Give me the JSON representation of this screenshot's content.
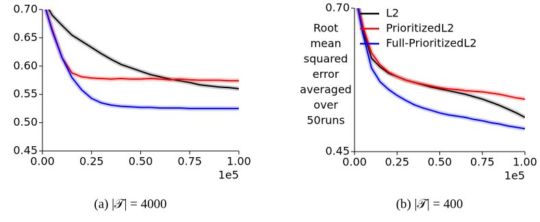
{
  "chart_data": [
    {
      "type": "line",
      "caption": "(a) |𝒯| = 4000",
      "x_offset_label": "1e5",
      "x": [
        0,
        5000,
        10000,
        15000,
        20000,
        25000,
        30000,
        35000,
        40000,
        45000,
        50000,
        55000,
        60000,
        65000,
        70000,
        75000,
        80000,
        85000,
        90000,
        95000,
        100000
      ],
      "xlim": [
        0,
        100000
      ],
      "xticks": [
        {
          "value": 0,
          "label": "0.00"
        },
        {
          "value": 25000,
          "label": "0.25"
        },
        {
          "value": 50000,
          "label": "0.50"
        },
        {
          "value": 75000,
          "label": "0.75"
        },
        {
          "value": 100000,
          "label": "1.00"
        }
      ],
      "ylim": [
        0.45,
        0.7
      ],
      "yticks": [
        {
          "value": 0.45,
          "label": "0.45"
        },
        {
          "value": 0.5,
          "label": "0.50"
        },
        0.55,
        {
          "value": 0.6,
          "label": "0.60"
        },
        0.65,
        {
          "value": 0.7,
          "label": "0.70"
        }
      ],
      "series": [
        {
          "name": "L2",
          "color": "#000000",
          "values": [
            0.72,
            0.69,
            0.672,
            0.655,
            0.644,
            0.633,
            0.622,
            0.612,
            0.603,
            0.597,
            0.591,
            0.585,
            0.581,
            0.577,
            0.574,
            0.571,
            0.567,
            0.565,
            0.563,
            0.562,
            0.56
          ]
        },
        {
          "name": "PrioritizedL2",
          "color": "#ff0000",
          "values": [
            0.72,
            0.665,
            0.615,
            0.588,
            0.581,
            0.579,
            0.578,
            0.577,
            0.578,
            0.577,
            0.577,
            0.578,
            0.577,
            0.576,
            0.577,
            0.576,
            0.575,
            0.575,
            0.575,
            0.574,
            0.574
          ]
        },
        {
          "name": "Full-PrioritizedL2",
          "color": "#0000ff",
          "values": [
            0.72,
            0.662,
            0.615,
            0.58,
            0.558,
            0.543,
            0.535,
            0.531,
            0.529,
            0.528,
            0.527,
            0.527,
            0.526,
            0.526,
            0.526,
            0.525,
            0.525,
            0.525,
            0.525,
            0.525,
            0.525
          ]
        }
      ]
    },
    {
      "type": "line",
      "caption": "(b) |𝒯| = 400",
      "x_offset_label": "1e5",
      "ylabel": [
        "Root",
        "mean",
        "squared",
        "error",
        "averaged",
        "over",
        "50runs"
      ],
      "log_y": true,
      "legend": "upper left",
      "x": [
        0,
        5000,
        10000,
        15000,
        20000,
        25000,
        30000,
        35000,
        40000,
        45000,
        50000,
        55000,
        60000,
        65000,
        70000,
        75000,
        80000,
        85000,
        90000,
        95000,
        100000
      ],
      "xlim": [
        0,
        100000
      ],
      "xticks": [
        {
          "value": 0,
          "label": "0.00"
        },
        {
          "value": 25000,
          "label": "0.25"
        },
        {
          "value": 50000,
          "label": "0.50"
        },
        {
          "value": 75000,
          "label": "0.75"
        },
        {
          "value": 100000,
          "label": "1.00"
        }
      ],
      "ylim": [
        0.45,
        0.7
      ],
      "yticks": [
        0.45,
        {
          "value": 0.7,
          "label": "0.70"
        }
      ],
      "series": [
        {
          "name": "L2",
          "color": "#000000",
          "values": [
            0.74,
            0.653,
            0.6,
            0.584,
            0.573,
            0.567,
            0.561,
            0.557,
            0.553,
            0.549,
            0.546,
            0.543,
            0.54,
            0.537,
            0.533,
            0.529,
            0.524,
            0.519,
            0.513,
            0.507,
            0.5
          ]
        },
        {
          "name": "PrioritizedL2",
          "color": "#ff0000",
          "values": [
            0.74,
            0.66,
            0.61,
            0.588,
            0.575,
            0.567,
            0.561,
            0.557,
            0.554,
            0.551,
            0.548,
            0.546,
            0.545,
            0.543,
            0.542,
            0.541,
            0.539,
            0.537,
            0.534,
            0.531,
            0.529
          ]
        },
        {
          "name": "Full-PrioritizedL2",
          "color": "#0000ff",
          "values": [
            0.74,
            0.645,
            0.582,
            0.558,
            0.545,
            0.535,
            0.527,
            0.52,
            0.515,
            0.511,
            0.507,
            0.504,
            0.502,
            0.5,
            0.497,
            0.495,
            0.492,
            0.49,
            0.487,
            0.485,
            0.483
          ]
        }
      ]
    }
  ]
}
